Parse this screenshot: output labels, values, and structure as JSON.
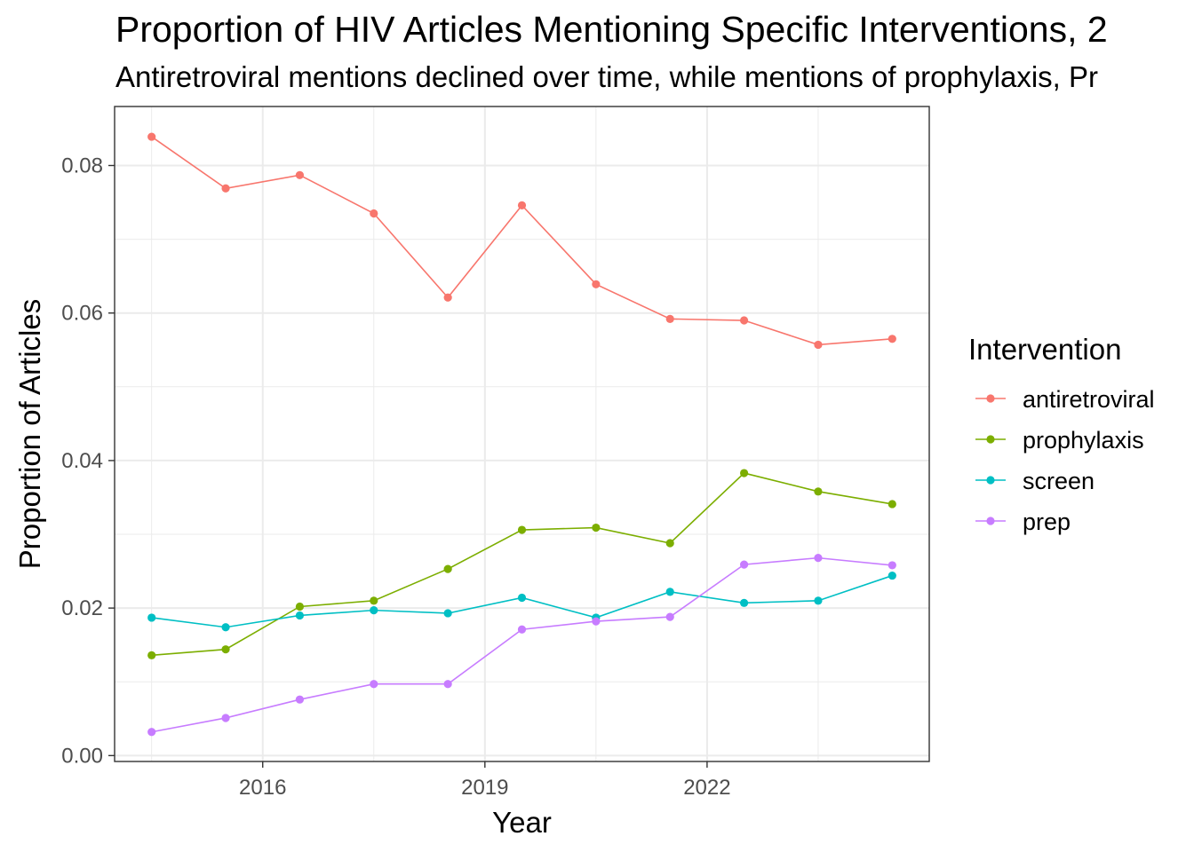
{
  "chart_data": {
    "type": "line",
    "title": "Proportion of HIV Articles Mentioning Specific Interventions, 2",
    "subtitle": "Antiretroviral mentions declined over time, while mentions of prophylaxis, Pr",
    "xlabel": "Year",
    "ylabel": "Proportion of Articles",
    "x": [
      2014.5,
      2015.5,
      2016.5,
      2017.5,
      2018.5,
      2019.5,
      2020.5,
      2021.5,
      2022.5,
      2023.5,
      2024.5
    ],
    "x_ticks": [
      2016,
      2019,
      2022
    ],
    "x_tick_labels": [
      "2016",
      "2019",
      "2022"
    ],
    "xlim": [
      2014.0,
      2025.0
    ],
    "y_ticks": [
      0.0,
      0.02,
      0.04,
      0.06,
      0.08
    ],
    "y_tick_labels": [
      "0.00",
      "0.02",
      "0.04",
      "0.06",
      "0.08"
    ],
    "ylim": [
      -0.0008,
      0.088
    ],
    "grid": true,
    "legend": {
      "title": "Intervention",
      "position": "right"
    },
    "series": [
      {
        "name": "antiretroviral",
        "color": "#F8766D",
        "values": [
          0.0839,
          0.0769,
          0.0787,
          0.0735,
          0.0621,
          0.0746,
          0.0639,
          0.0592,
          0.059,
          0.0557,
          0.0565
        ]
      },
      {
        "name": "prophylaxis",
        "color": "#7CAE00",
        "values": [
          0.0136,
          0.0144,
          0.0202,
          0.021,
          0.0253,
          0.0306,
          0.0309,
          0.0288,
          0.0383,
          0.0358,
          0.0341
        ]
      },
      {
        "name": "screen",
        "color": "#00BFC4",
        "values": [
          0.0187,
          0.0174,
          0.019,
          0.0197,
          0.0193,
          0.0214,
          0.0187,
          0.0222,
          0.0207,
          0.021,
          0.0244
        ]
      },
      {
        "name": "prep",
        "color": "#C77CFF",
        "values": [
          0.0032,
          0.0051,
          0.0076,
          0.0097,
          0.0097,
          0.0171,
          0.0182,
          0.0188,
          0.0259,
          0.0268,
          0.0258
        ]
      }
    ]
  }
}
